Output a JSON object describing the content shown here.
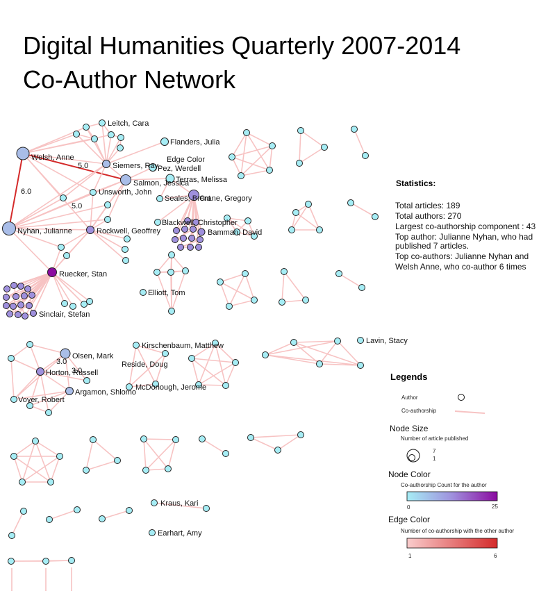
{
  "title": {
    "line1": "Digital Humanities Quarterly 2007-2014",
    "line2": "Co-Author Network"
  },
  "statistics": {
    "heading": "Statistics:",
    "lines": [
      "Total articles: 189",
      "Total authors: 270",
      "Largest co-authorship component : 43",
      "Top author: Julianne Nyhan, who had",
      "published 7 articles.",
      "Top co-authors: Julianne Nyhan and",
      "Welsh Anne, who co-author 6 times"
    ]
  },
  "legend": {
    "heading": "Legends",
    "author_label": "Author",
    "coauthorship_label": "Co-authorship",
    "node_size_heading": "Node Size",
    "node_size_sub": "Number of article published",
    "node_size_max": "7",
    "node_size_min": "1",
    "node_color_heading": "Node Color",
    "node_color_sub": "Co-authorship Count for the author",
    "node_color_min": "0",
    "node_color_max": "25",
    "node_color_low": "#a6edf5",
    "node_color_high": "#8b0aa0",
    "edge_color_heading": "Edge Color",
    "edge_color_sub": "Number of co-authorship with the other author",
    "edge_color_min": "1",
    "edge_color_max": "6",
    "edge_color_low": "#f9cccc",
    "edge_color_high": "#d42a2a"
  },
  "network": {
    "labeled_authors": [
      "Leitch, Cara",
      "Flanders, Julia",
      "Welsh, Anne",
      "Siemers, Ray",
      "Edge Color",
      "Pez, Werdell",
      "Salmon, Jessica",
      "Terras, Melissa",
      "Unsworth, John",
      "Crane, Gregory",
      "Seales, Brent",
      "Nyhan, Julianne",
      "Rockwell, Geoffrey",
      "Blackwell, Christopher",
      "Bamman, David",
      "Ruecker, Stan",
      "Elliott, Tom",
      "Sinclair, Stefan",
      "Kirschenbaum, Matthew",
      "Olsen, Mark",
      "Lavin, Stacy",
      "Reside, Doug",
      "Horton, Russell",
      "Argamon, Shlomo",
      "McDonough, Jerome",
      "Voyer, Robert",
      "Kraus, Kari",
      "Earhart, Amy"
    ],
    "edge_weight_labels": [
      "5.0",
      "6.0",
      "5.0",
      "3.0",
      "3.0"
    ]
  }
}
